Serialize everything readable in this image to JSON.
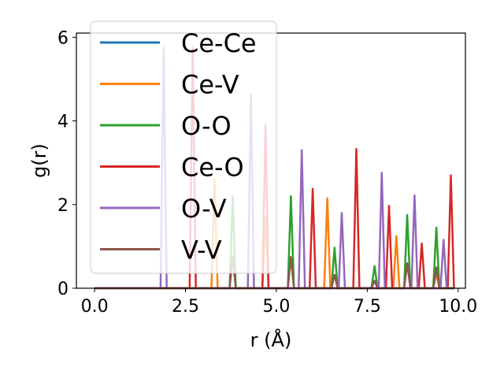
{
  "chart_data": {
    "type": "line",
    "xlabel": "r (Å)",
    "ylabel": "g(r)",
    "xlim": [
      -0.5,
      10.2
    ],
    "ylim": [
      0,
      6.1
    ],
    "xticks": [
      "0.0",
      "2.5",
      "5.0",
      "7.5",
      "10.0"
    ],
    "yticks": [
      "0",
      "2",
      "4",
      "6"
    ],
    "grid": false,
    "legend_position": "upper-left",
    "series": [
      {
        "name": "Ce-Ce",
        "color": "#1f77b4",
        "peaks": []
      },
      {
        "name": "Ce-V",
        "color": "#ff7f0e",
        "peaks": [
          [
            3.3,
            2.6
          ],
          [
            4.7,
            1.7
          ],
          [
            6.4,
            2.15
          ],
          [
            8.3,
            1.25
          ],
          [
            9.4,
            0.35
          ]
        ]
      },
      {
        "name": "O-O",
        "color": "#2ca02c",
        "peaks": [
          [
            3.8,
            2.2
          ],
          [
            5.4,
            2.2
          ],
          [
            6.6,
            0.97
          ],
          [
            7.7,
            0.53
          ],
          [
            8.6,
            1.75
          ],
          [
            9.4,
            1.45
          ]
        ]
      },
      {
        "name": "Ce-O",
        "color": "#d62728",
        "peaks": [
          [
            2.7,
            5.75
          ],
          [
            4.7,
            3.9
          ],
          [
            6.0,
            2.38
          ],
          [
            7.2,
            3.33
          ],
          [
            8.1,
            1.97
          ],
          [
            9.0,
            1.07
          ],
          [
            9.8,
            2.7
          ]
        ]
      },
      {
        "name": "O-V",
        "color": "#9467bd",
        "peaks": [
          [
            1.9,
            5.75
          ],
          [
            4.3,
            4.62
          ],
          [
            5.7,
            3.3
          ],
          [
            6.8,
            1.8
          ],
          [
            7.9,
            2.76
          ],
          [
            8.8,
            2.22
          ],
          [
            9.6,
            1.16
          ]
        ]
      },
      {
        "name": "V-V",
        "color": "#8c564b",
        "peaks": [
          [
            3.8,
            0.75
          ],
          [
            5.4,
            0.75
          ],
          [
            6.6,
            0.32
          ],
          [
            7.7,
            0.18
          ],
          [
            8.6,
            0.6
          ],
          [
            9.4,
            0.5
          ]
        ]
      }
    ]
  }
}
